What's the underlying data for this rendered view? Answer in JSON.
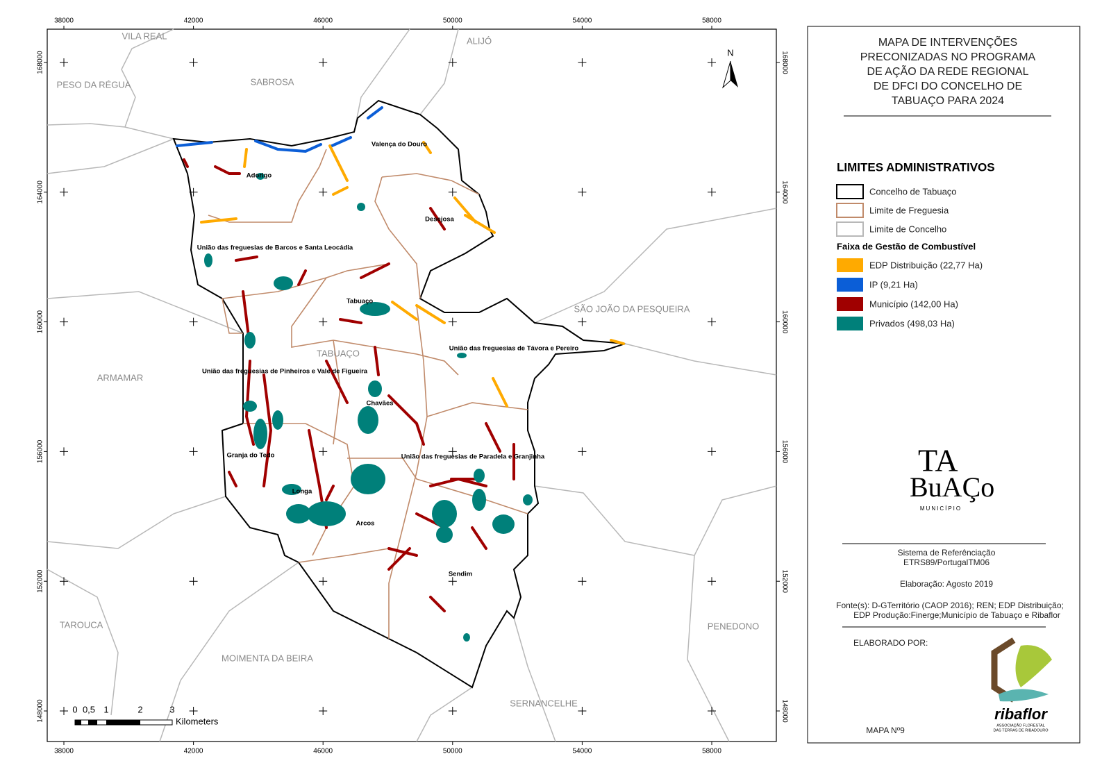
{
  "map": {
    "x_ticks": [
      38000,
      42000,
      46000,
      50000,
      54000,
      58000
    ],
    "y_ticks": [
      148000,
      152000,
      156000,
      160000,
      164000,
      168000
    ],
    "north": "N",
    "neighbours": [
      "VILA REAL",
      "ALIJÓ",
      "SABROSA",
      "PESO DA RÉGUA",
      "SÃO JOÃO DA PESQUEIRA",
      "ARMAMAR",
      "TAROUCA",
      "MOIMENTA DA BEIRA",
      "SERNANCELHE",
      "PENEDONO",
      "TABUAÇO"
    ],
    "parishes": [
      "Valença do Douro",
      "Adorigo",
      "Desejosa",
      "União das freguesias de Barcos e Santa Leocádia",
      "Tabuaço",
      "União das freguesias de Távora e Pereiro",
      "União das freguesias de Pinheiros e Vale de Figueira",
      "Chavães",
      "Granja do Tedo",
      "União das freguesias de Paradela e Granjinha",
      "Longa",
      "Arcos",
      "Sendim"
    ],
    "scale_labels": [
      "0",
      "0,5",
      "1",
      "2",
      "3"
    ],
    "scale_unit": "Kilometers"
  },
  "panel": {
    "title": [
      "MAPA DE INTERVENÇÕES",
      "PRECONIZADAS NO PROGRAMA",
      "DE AÇÃO DA REDE REGIONAL",
      "DE DFCI DO CONCELHO DE",
      "TABUAÇO PARA 2024"
    ],
    "admin_title": "LIMITES ADMINISTRATIVOS",
    "admin_items": [
      {
        "label": "Concelho de Tabuaço",
        "color": "#000000"
      },
      {
        "label": "Limite de Freguesia",
        "color": "#c08a6a"
      },
      {
        "label": "Limite de Concelho",
        "color": "#b8b8b8"
      }
    ],
    "fuel_title": "Faixa de Gestão de Combustível",
    "fuel_items": [
      {
        "label": "EDP Distribuição (22,77 Ha)",
        "color": "#ffaa00"
      },
      {
        "label": "IP (9,21 Ha)",
        "color": "#0b5ed7"
      },
      {
        "label": "Município (142,00 Ha)",
        "color": "#a00000"
      },
      {
        "label": "Privados (498,03 Ha)",
        "color": "#00807a"
      }
    ],
    "logo": [
      "TA",
      "BuAÇo",
      "MUNICÍPIO"
    ],
    "reference": [
      "Sistema de Referênciação",
      "ETRS89/PortugalTM06"
    ],
    "date": "Elaboração: Agosto 2019",
    "sources": [
      "Fonte(s): D-GTerritório (CAOP 2016); REN; EDP Distribuição;",
      "EDP Produção:Finerge;Município de Tabuaço e Ribaflor"
    ],
    "made_by": "ELABORADO POR:",
    "ribaflor": [
      "ribaflor",
      "ASSOCIAÇÃO FLORESTAL",
      "DAS TERRAS DE RIBADOURO"
    ],
    "map_number": "MAPA Nº9"
  }
}
